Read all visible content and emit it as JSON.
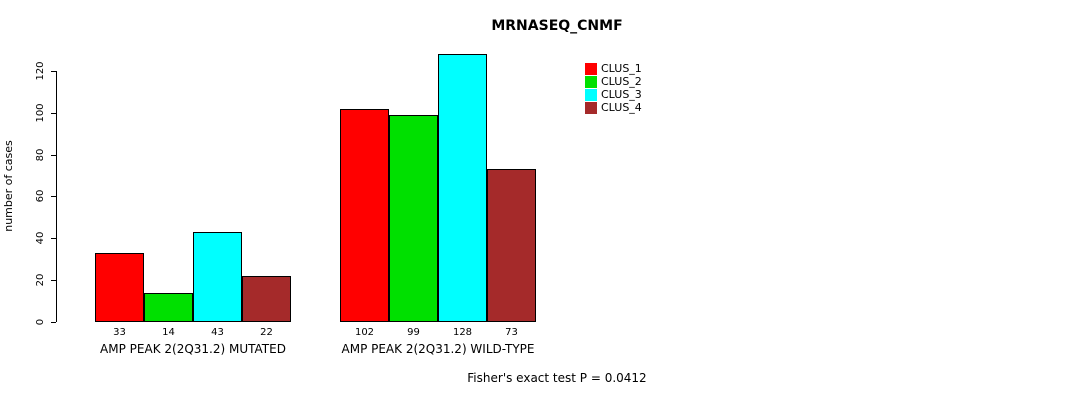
{
  "title": "MRNASEQ_CNMF",
  "footer": "Fisher's exact test P = 0.0412",
  "chart_data": {
    "type": "bar",
    "title": "MRNASEQ_CNMF",
    "ylabel": "number of cases",
    "xlabel": "",
    "categories": [
      "AMP PEAK 2(2Q31.2) MUTATED",
      "AMP PEAK 2(2Q31.2) WILD-TYPE"
    ],
    "series": [
      {
        "name": "CLUS_1",
        "color": "#ff0000",
        "values": [
          33,
          102
        ]
      },
      {
        "name": "CLUS_2",
        "color": "#00e000",
        "values": [
          14,
          99
        ]
      },
      {
        "name": "CLUS_3",
        "color": "#00ffff",
        "values": [
          43,
          128
        ]
      },
      {
        "name": "CLUS_4",
        "color": "#a52a2a",
        "values": [
          22,
          73
        ]
      }
    ],
    "yticks": [
      0,
      20,
      40,
      60,
      80,
      100,
      120
    ],
    "ylim": [
      0,
      130
    ],
    "bar_value_labels": true,
    "legend_position": "top-right",
    "legend_entries": [
      "CLUS_1",
      "CLUS_2",
      "CLUS_3",
      "CLUS_4"
    ],
    "annotation": "Fisher's exact test P = 0.0412"
  }
}
